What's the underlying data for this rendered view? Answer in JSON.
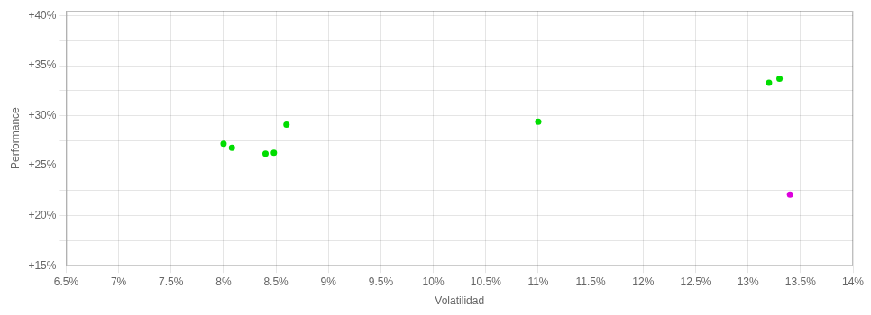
{
  "chart_data": {
    "type": "scatter",
    "xlabel": "Volatilidad",
    "ylabel": "Performance",
    "xlim": [
      0.065,
      0.14
    ],
    "ylim": [
      0.15,
      0.405
    ],
    "xticks": [
      {
        "value": 0.065,
        "label": "6.5%"
      },
      {
        "value": 0.07,
        "label": "7%"
      },
      {
        "value": 0.075,
        "label": "7.5%"
      },
      {
        "value": 0.08,
        "label": "8%"
      },
      {
        "value": 0.085,
        "label": "8.5%"
      },
      {
        "value": 0.09,
        "label": "9%"
      },
      {
        "value": 0.095,
        "label": "9.5%"
      },
      {
        "value": 0.1,
        "label": "10%"
      },
      {
        "value": 0.105,
        "label": "10.5%"
      },
      {
        "value": 0.11,
        "label": "11%"
      },
      {
        "value": 0.115,
        "label": "11.5%"
      },
      {
        "value": 0.12,
        "label": "12%"
      },
      {
        "value": 0.125,
        "label": "12.5%"
      },
      {
        "value": 0.13,
        "label": "13%"
      },
      {
        "value": 0.135,
        "label": "13.5%"
      },
      {
        "value": 0.14,
        "label": "14%"
      }
    ],
    "yticks": [
      {
        "value": 0.15,
        "label": "+15%"
      },
      {
        "value": 0.175,
        "label": null
      },
      {
        "value": 0.2,
        "label": "+20%"
      },
      {
        "value": 0.225,
        "label": null
      },
      {
        "value": 0.25,
        "label": "+25%"
      },
      {
        "value": 0.275,
        "label": null
      },
      {
        "value": 0.3,
        "label": "+30%"
      },
      {
        "value": 0.325,
        "label": null
      },
      {
        "value": 0.35,
        "label": "+35%"
      },
      {
        "value": 0.375,
        "label": null
      },
      {
        "value": 0.4,
        "label": "+40%"
      }
    ],
    "grid": true,
    "series": [
      {
        "color": "#00dd00",
        "x": [
          0.08,
          0.0808,
          0.084,
          0.0848,
          0.086,
          0.11,
          0.132,
          0.133
        ],
        "values": [
          0.272,
          0.268,
          0.262,
          0.263,
          0.291,
          0.294,
          0.333,
          0.337
        ]
      },
      {
        "color": "#dd00dd",
        "x": [
          0.134
        ],
        "values": [
          0.221
        ]
      }
    ]
  }
}
